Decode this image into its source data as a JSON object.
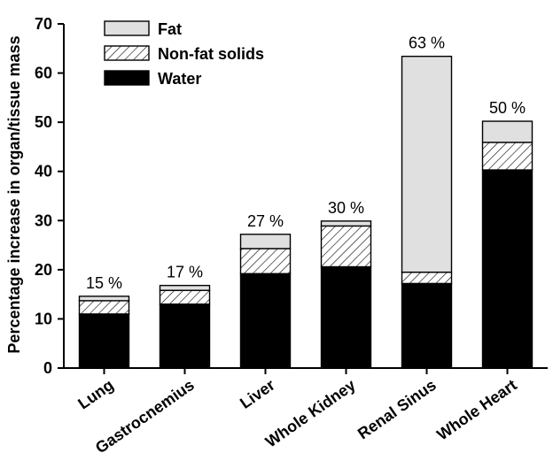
{
  "chart_data": {
    "type": "bar",
    "stacked": true,
    "title": "",
    "xlabel": "",
    "ylabel": "Percentage increase in organ/tissue mass",
    "ylim": [
      0,
      70
    ],
    "yticks": [
      0,
      10,
      20,
      30,
      40,
      50,
      60,
      70
    ],
    "grid": false,
    "legend_position": "top-left",
    "categories": [
      "Lung",
      "Gastrocnemius",
      "Liver",
      "Whole Kidney",
      "Renal Sinus",
      "Whole Heart"
    ],
    "series": [
      {
        "name": "Water",
        "values": [
          11.0,
          13.0,
          19.2,
          20.6,
          17.2,
          40.3
        ],
        "fill": "solid",
        "color": "#000000"
      },
      {
        "name": "Non-fat solids",
        "values": [
          2.7,
          2.8,
          5.1,
          8.3,
          2.3,
          5.6
        ],
        "fill": "hatch",
        "color": "#ffffff"
      },
      {
        "name": "Fat",
        "values": [
          0.9,
          1.0,
          2.9,
          1.0,
          43.9,
          4.3
        ],
        "fill": "solid",
        "color": "#e0e0e0"
      }
    ],
    "total_labels": [
      "15 %",
      "17 %",
      "27 %",
      "30 %",
      "63 %",
      "50 %"
    ]
  }
}
